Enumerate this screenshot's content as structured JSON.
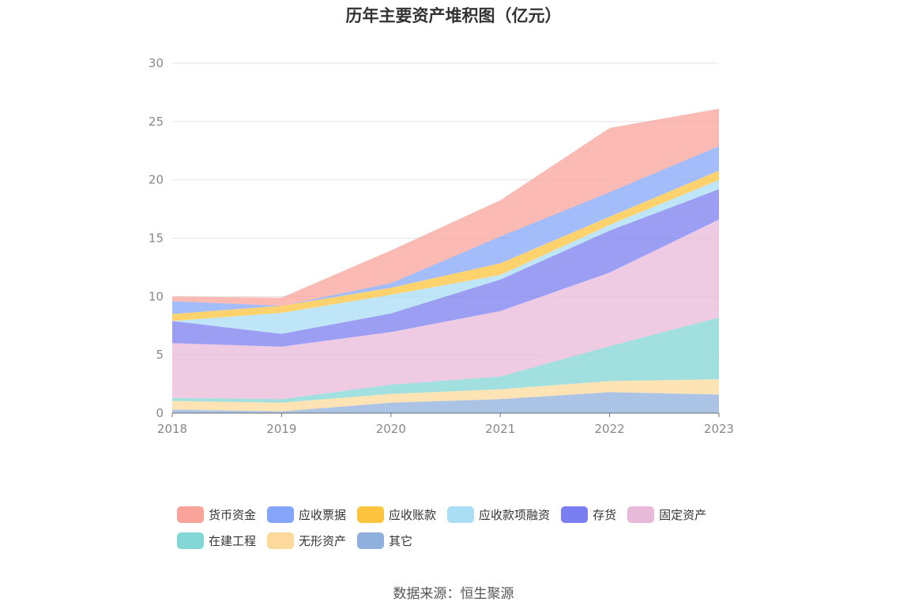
{
  "chart_data": {
    "type": "area",
    "stacked": true,
    "title": "历年主要资产堆积图（亿元）",
    "x": [
      "2018",
      "2019",
      "2020",
      "2021",
      "2022",
      "2023"
    ],
    "ylim": [
      0,
      30
    ],
    "yticks": [
      0,
      5,
      10,
      15,
      20,
      25,
      30
    ],
    "grid": true,
    "legend_position": "bottom",
    "series": [
      {
        "name": "其它",
        "color": "#8fb0dd",
        "values": [
          0.3,
          0.15,
          0.9,
          1.2,
          1.8,
          1.6
        ]
      },
      {
        "name": "无形资产",
        "color": "#fdd99b",
        "values": [
          0.75,
          0.75,
          0.75,
          0.85,
          0.95,
          1.3
        ]
      },
      {
        "name": "在建工程",
        "color": "#83d6d6",
        "values": [
          0.25,
          0.3,
          0.8,
          1.1,
          3.0,
          5.3
        ]
      },
      {
        "name": "固定资产",
        "color": "#e8b9d9",
        "values": [
          4.7,
          4.5,
          4.5,
          5.6,
          6.3,
          8.4
        ]
      },
      {
        "name": "存货",
        "color": "#7b7ef0",
        "values": [
          1.9,
          1.1,
          1.6,
          2.7,
          3.6,
          2.6
        ]
      },
      {
        "name": "应收款项融资",
        "color": "#a9def5",
        "values": [
          0.0,
          1.8,
          1.6,
          0.4,
          0.5,
          0.8
        ]
      },
      {
        "name": "应收账款",
        "color": "#fdc43e",
        "values": [
          0.6,
          0.6,
          0.6,
          1.0,
          0.7,
          0.8
        ]
      },
      {
        "name": "应收票据",
        "color": "#84a5f8",
        "values": [
          1.1,
          0.0,
          0.4,
          2.3,
          2.1,
          2.1
        ]
      },
      {
        "name": "货币资金",
        "color": "#f9a39a",
        "values": [
          0.4,
          0.7,
          2.8,
          3.1,
          5.5,
          3.2
        ]
      }
    ]
  },
  "legend": {
    "row1": [
      {
        "label": "货币资金",
        "color": "#f9a39a"
      },
      {
        "label": "应收票据",
        "color": "#84a5f8"
      },
      {
        "label": "应收账款",
        "color": "#fdc43e"
      },
      {
        "label": "应收款项融资",
        "color": "#a9def5"
      },
      {
        "label": "存货",
        "color": "#7b7ef0"
      },
      {
        "label": "固定资产",
        "color": "#e8b9d9"
      }
    ],
    "row2": [
      {
        "label": "在建工程",
        "color": "#83d6d6"
      },
      {
        "label": "无形资产",
        "color": "#fdd99b"
      },
      {
        "label": "其它",
        "color": "#8fb0dd"
      }
    ]
  },
  "source": "数据来源：恒生聚源"
}
